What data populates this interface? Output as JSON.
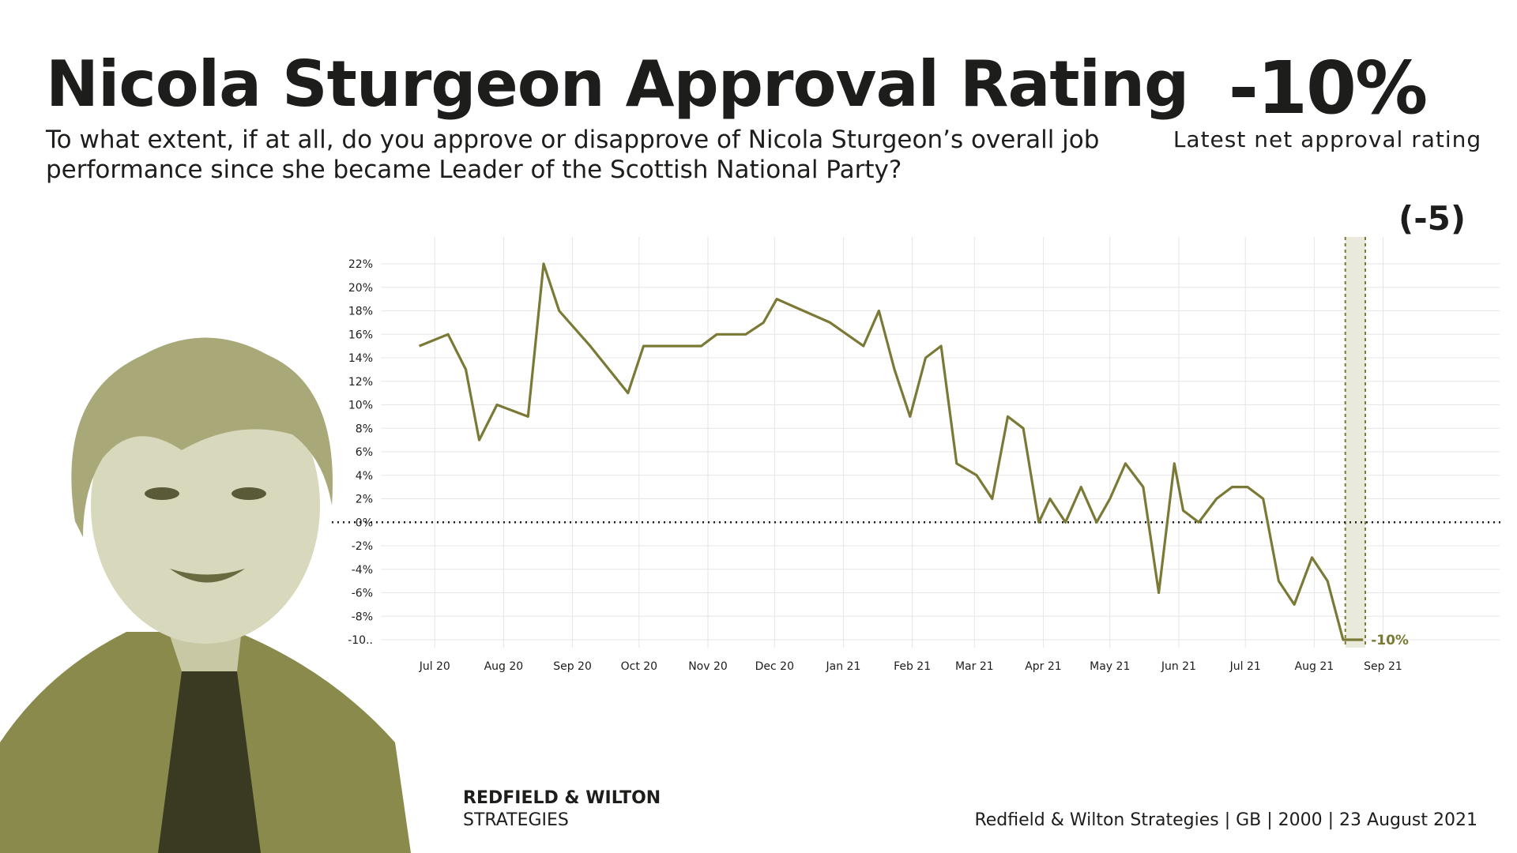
{
  "header": {
    "title": "Nicola Sturgeon Approval Rating",
    "subtitle": "To what extent, if at all, do you approve or disapprove of Nicola Sturgeon’s overall job performance since she became Leader of the Scottish National Party?",
    "latest_value": "-10%",
    "latest_label": "Latest net approval rating",
    "change": "(-5)"
  },
  "brand": {
    "line1": "REDFIELD & WILTON",
    "line2": "STRATEGIES"
  },
  "footer": {
    "source": "Redfield & Wilton Strategies | GB | 2000 | 23 August 2021"
  },
  "colors": {
    "line": "#7a7a36",
    "highlight": "#e9e9dc",
    "text": "#1d1d1b",
    "grid": "#e6e6e6"
  },
  "chart_data": {
    "type": "line",
    "title": "",
    "xlabel": "",
    "ylabel": "",
    "ylim": [
      -10,
      22
    ],
    "y_ticks": [
      "22%",
      "20%",
      "18%",
      "16%",
      "14%",
      "12%",
      "10%",
      "8%",
      "6%",
      "4%",
      "2%",
      "0%",
      "-2%",
      "-4%",
      "-6%",
      "-8%",
      "-10.."
    ],
    "x_ticks": [
      "Jul 20",
      "Aug 20",
      "Sep 20",
      "Oct 20",
      "Nov 20",
      "Dec 20",
      "Jan 21",
      "Feb 21",
      "Mar 21",
      "Apr 21",
      "May 21",
      "Jun 21",
      "Jul 21",
      "Aug 21",
      "Sep 21"
    ],
    "end_label": "-10%",
    "grid": true,
    "zero_line": "dotted",
    "series": [
      {
        "x": [
          "2020-06-24",
          "2020-07-07",
          "2020-07-15",
          "2020-07-21",
          "2020-07-29",
          "2020-08-12",
          "2020-08-19",
          "2020-08-26",
          "2020-09-09",
          "2020-09-26",
          "2020-10-03",
          "2020-10-29",
          "2020-11-05",
          "2020-11-18",
          "2020-11-26",
          "2020-12-02",
          "2020-12-26",
          "2021-01-10",
          "2021-01-17",
          "2021-01-24",
          "2021-01-31",
          "2021-02-07",
          "2021-02-14",
          "2021-02-21",
          "2021-03-02",
          "2021-03-09",
          "2021-03-16",
          "2021-03-23",
          "2021-03-30",
          "2021-04-04",
          "2021-04-11",
          "2021-04-18",
          "2021-04-25",
          "2021-05-01",
          "2021-05-08",
          "2021-05-16",
          "2021-05-23",
          "2021-05-30",
          "2021-06-03",
          "2021-06-10",
          "2021-06-18",
          "2021-06-25",
          "2021-07-02",
          "2021-07-09",
          "2021-07-16",
          "2021-07-23",
          "2021-07-31",
          "2021-08-07",
          "2021-08-14",
          "2021-08-21",
          "2021-08-23"
        ],
        "values": [
          15,
          16,
          13,
          7,
          10,
          9,
          22,
          18,
          15,
          11,
          15,
          15,
          16,
          16,
          17,
          19,
          17,
          15,
          18,
          13,
          9,
          14,
          15,
          5,
          4,
          2,
          9,
          8,
          0,
          2,
          0,
          3,
          0,
          2,
          5,
          3,
          -6,
          5,
          1,
          0,
          2,
          3,
          3,
          2,
          -5,
          -7,
          -3,
          -5,
          -10,
          -10,
          -10
        ]
      }
    ]
  }
}
